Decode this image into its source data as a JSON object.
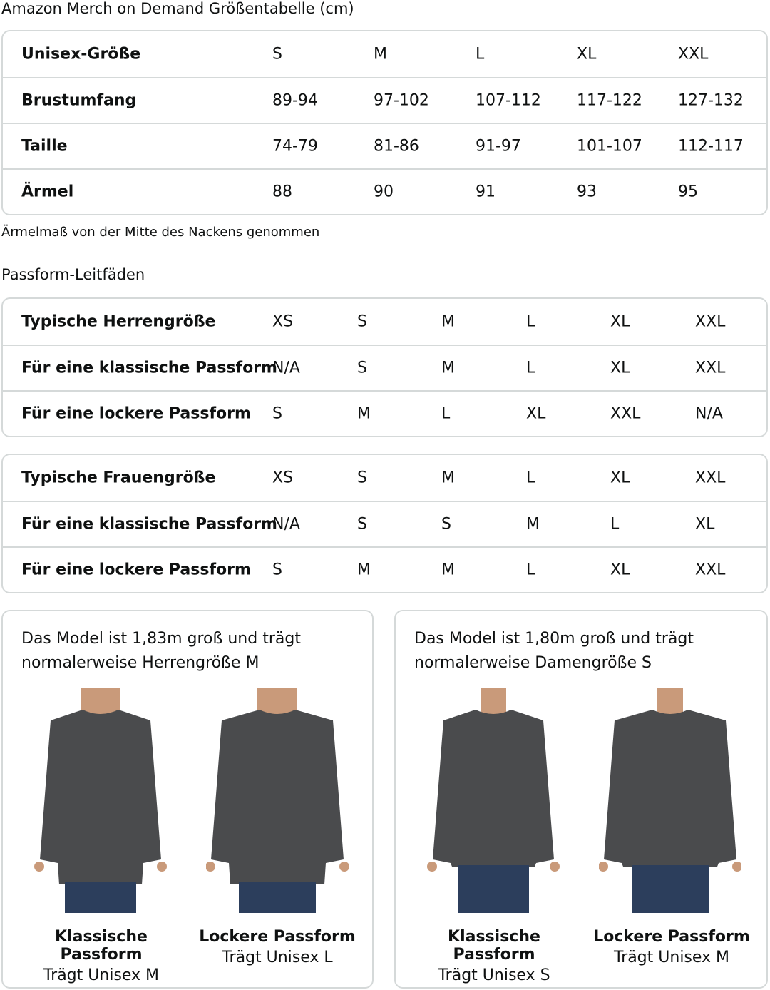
{
  "title": "Amazon Merch on Demand Größentabelle (cm)",
  "size_table": {
    "rows": [
      {
        "label": "Unisex-Größe",
        "values": [
          "S",
          "M",
          "L",
          "XL",
          "XXL"
        ]
      },
      {
        "label": "Brustumfang",
        "values": [
          "89-94",
          "97-102",
          "107-112",
          "117-122",
          "127-132"
        ]
      },
      {
        "label": "Taille",
        "values": [
          "74-79",
          "81-86",
          "91-97",
          "101-107",
          "112-117"
        ]
      },
      {
        "label": "Ärmel",
        "values": [
          "88",
          "90",
          "91",
          "93",
          "95"
        ]
      }
    ]
  },
  "sleeve_note": "Ärmelmaß von der Mitte des Nackens genommen",
  "fit_heading": "Passform-Leitfäden",
  "men_table": {
    "rows": [
      {
        "label": "Typische Herrengröße",
        "values": [
          "XS",
          "S",
          "M",
          "L",
          "XL",
          "XXL"
        ]
      },
      {
        "label": "Für eine klassische Passform",
        "values": [
          "N/A",
          "S",
          "M",
          "L",
          "XL",
          "XXL"
        ]
      },
      {
        "label": "Für eine lockere Passform",
        "values": [
          "S",
          "M",
          "L",
          "XL",
          "XXL",
          "N/A"
        ]
      }
    ]
  },
  "women_table": {
    "rows": [
      {
        "label": "Typische Frauengröße",
        "values": [
          "XS",
          "S",
          "M",
          "L",
          "XL",
          "XXL"
        ]
      },
      {
        "label": "Für eine klassische Passform",
        "values": [
          "N/A",
          "S",
          "S",
          "M",
          "L",
          "XL"
        ]
      },
      {
        "label": "Für eine lockere Passform",
        "values": [
          "S",
          "M",
          "M",
          "L",
          "XL",
          "XXL"
        ]
      }
    ]
  },
  "cards": [
    {
      "desc": "Das Model ist 1,83m groß und trägt normalerweise Herrengröße M",
      "figures": [
        {
          "title": "Klassische Passform",
          "sub": "Trägt Unisex M"
        },
        {
          "title": "Lockere Passform",
          "sub": "Trägt Unisex L"
        }
      ]
    },
    {
      "desc": "Das Model ist 1,80m groß und trägt normalerweise Damengröße S",
      "figures": [
        {
          "title": "Klassische Passform",
          "sub": "Trägt Unisex S"
        },
        {
          "title": "Lockere Passform",
          "sub": "Trägt Unisex M"
        }
      ]
    }
  ],
  "colors": {
    "shirt": "#4a4b4d",
    "border": "#d5d9d9",
    "jeans": "#2c3e5c"
  }
}
